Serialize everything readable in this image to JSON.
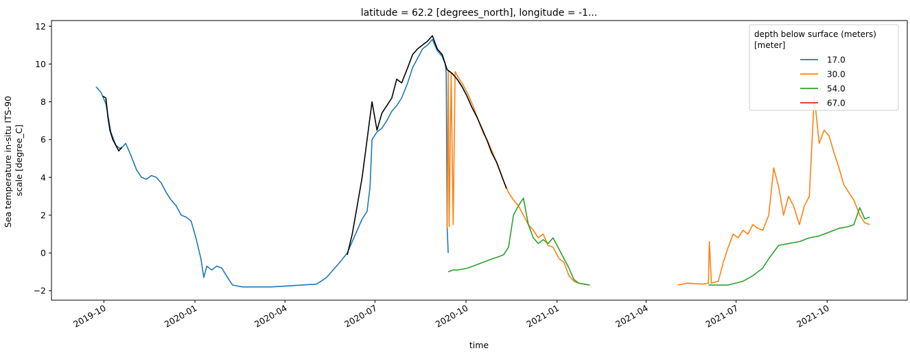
{
  "chart_data": {
    "type": "line",
    "title": "latitude = 62.2 [degrees_north], longitude = -1...",
    "xlabel": "time",
    "ylabel_line1": "Sea temperature in-situ ITS-90",
    "ylabel_line2": "scale [degree_C]",
    "xlim": [
      "2019-08-09",
      "2021-12-21"
    ],
    "ylim": [
      -2.5,
      12.3
    ],
    "x_ticks": [
      "2019-10",
      "2020-01",
      "2020-04",
      "2020-07",
      "2020-10",
      "2021-01",
      "2021-04",
      "2021-07",
      "2021-10"
    ],
    "x_tick_dates": [
      "2019-10-01",
      "2020-01-01",
      "2020-04-01",
      "2020-07-01",
      "2020-10-01",
      "2021-01-01",
      "2021-04-01",
      "2021-07-01",
      "2021-10-01"
    ],
    "y_ticks": [
      -2,
      0,
      2,
      4,
      6,
      8,
      10,
      12
    ],
    "y_tick_labels": [
      "−2",
      "0",
      "2",
      "4",
      "6",
      "8",
      "10",
      "12"
    ],
    "grid": false,
    "legend": {
      "title_line1": "depth below surface (meters)",
      "title_line2": "[meter]",
      "placement": "top-right"
    },
    "series": [
      {
        "name": "17.0",
        "color": "#1f77b4",
        "points": [
          [
            "2019-09-23",
            8.8
          ],
          [
            "2019-09-28",
            8.5
          ],
          [
            "2019-10-03",
            7.9
          ],
          [
            "2019-10-08",
            6.4
          ],
          [
            "2019-10-13",
            5.7
          ],
          [
            "2019-10-18",
            5.5
          ],
          [
            "2019-10-23",
            5.8
          ],
          [
            "2019-10-28",
            5.2
          ],
          [
            "2019-11-03",
            4.4
          ],
          [
            "2019-11-08",
            4.0
          ],
          [
            "2019-11-13",
            3.9
          ],
          [
            "2019-11-18",
            4.1
          ],
          [
            "2019-11-23",
            4.0
          ],
          [
            "2019-11-28",
            3.7
          ],
          [
            "2019-12-03",
            3.2
          ],
          [
            "2019-12-08",
            2.8
          ],
          [
            "2019-12-13",
            2.5
          ],
          [
            "2019-12-18",
            2.0
          ],
          [
            "2019-12-23",
            1.9
          ],
          [
            "2019-12-28",
            1.7
          ],
          [
            "2020-01-02",
            0.8
          ],
          [
            "2020-01-07",
            -0.3
          ],
          [
            "2020-01-10",
            -1.3
          ],
          [
            "2020-01-13",
            -0.7
          ],
          [
            "2020-01-18",
            -0.9
          ],
          [
            "2020-01-23",
            -0.7
          ],
          [
            "2020-01-28",
            -0.8
          ],
          [
            "2020-02-03",
            -1.3
          ],
          [
            "2020-02-08",
            -1.7
          ],
          [
            "2020-02-18",
            -1.8
          ],
          [
            "2020-03-03",
            -1.8
          ],
          [
            "2020-03-18",
            -1.8
          ],
          [
            "2020-04-03",
            -1.75
          ],
          [
            "2020-04-18",
            -1.7
          ],
          [
            "2020-05-03",
            -1.65
          ],
          [
            "2020-05-13",
            -1.3
          ],
          [
            "2020-05-18",
            -1.0
          ],
          [
            "2020-05-23",
            -0.7
          ],
          [
            "2020-05-28",
            -0.4
          ],
          [
            "2020-06-03",
            0.0
          ],
          [
            "2020-06-08",
            0.6
          ],
          [
            "2020-06-13",
            1.2
          ],
          [
            "2020-06-18",
            1.8
          ],
          [
            "2020-06-23",
            2.2
          ],
          [
            "2020-06-26",
            3.5
          ],
          [
            "2020-06-28",
            6.0
          ],
          [
            "2020-07-03",
            6.4
          ],
          [
            "2020-07-08",
            6.6
          ],
          [
            "2020-07-13",
            7.0
          ],
          [
            "2020-07-18",
            7.5
          ],
          [
            "2020-07-23",
            7.8
          ],
          [
            "2020-07-28",
            8.2
          ],
          [
            "2020-08-03",
            9.0
          ],
          [
            "2020-08-08",
            9.8
          ],
          [
            "2020-08-13",
            10.3
          ],
          [
            "2020-08-18",
            10.8
          ],
          [
            "2020-08-23",
            11.0
          ],
          [
            "2020-08-28",
            11.3
          ],
          [
            "2020-09-02",
            10.7
          ],
          [
            "2020-09-07",
            10.4
          ],
          [
            "2020-09-10",
            10.0
          ],
          [
            "2020-09-11",
            9.5
          ],
          [
            "2020-09-12",
            1.3
          ],
          [
            "2020-09-13",
            0.0
          ]
        ]
      },
      {
        "name": "30.0",
        "color": "#ff7f0e",
        "points": [
          [
            "2020-09-12",
            1.3
          ],
          [
            "2020-09-13",
            9.6
          ],
          [
            "2020-09-14",
            1.4
          ],
          [
            "2020-09-16",
            9.5
          ],
          [
            "2020-09-18",
            1.5
          ],
          [
            "2020-09-20",
            9.6
          ],
          [
            "2020-09-23",
            9.3
          ],
          [
            "2020-09-28",
            8.9
          ],
          [
            "2020-10-03",
            8.4
          ],
          [
            "2020-10-08",
            7.8
          ],
          [
            "2020-10-13",
            7.1
          ],
          [
            "2020-10-18",
            6.4
          ],
          [
            "2020-10-23",
            5.9
          ],
          [
            "2020-10-28",
            5.3
          ],
          [
            "2020-11-03",
            4.5
          ],
          [
            "2020-11-08",
            3.8
          ],
          [
            "2020-11-13",
            3.2
          ],
          [
            "2020-11-18",
            2.8
          ],
          [
            "2020-11-23",
            2.5
          ],
          [
            "2020-11-28",
            2.0
          ],
          [
            "2020-12-03",
            1.5
          ],
          [
            "2020-12-08",
            1.2
          ],
          [
            "2020-12-13",
            0.8
          ],
          [
            "2020-12-18",
            1.0
          ],
          [
            "2020-12-23",
            0.4
          ],
          [
            "2020-12-28",
            0.3
          ],
          [
            "2021-01-03",
            -0.3
          ],
          [
            "2021-01-08",
            -0.5
          ],
          [
            "2021-01-13",
            -1.2
          ],
          [
            "2021-01-18",
            -1.5
          ],
          [
            "2021-01-23",
            -1.6
          ],
          [
            "2021-02-03",
            -1.7
          ],
          [
            "2021-03-03",
            -1.75
          ],
          [
            "2021-04-03",
            -1.75
          ],
          [
            "2021-05-03",
            -1.7
          ],
          [
            "2021-05-13",
            -1.6
          ],
          [
            "2021-05-28",
            -1.65
          ],
          [
            "2021-06-03",
            -1.6
          ],
          [
            "2021-06-04",
            0.6
          ],
          [
            "2021-06-06",
            -1.6
          ],
          [
            "2021-06-13",
            -1.5
          ],
          [
            "2021-06-18",
            -0.5
          ],
          [
            "2021-06-23",
            0.3
          ],
          [
            "2021-06-28",
            1.0
          ],
          [
            "2021-07-03",
            0.8
          ],
          [
            "2021-07-08",
            1.2
          ],
          [
            "2021-07-13",
            1.0
          ],
          [
            "2021-07-18",
            1.5
          ],
          [
            "2021-07-23",
            1.3
          ],
          [
            "2021-07-28",
            1.2
          ],
          [
            "2021-08-03",
            2.0
          ],
          [
            "2021-08-08",
            4.5
          ],
          [
            "2021-08-13",
            3.5
          ],
          [
            "2021-08-18",
            2.0
          ],
          [
            "2021-08-23",
            3.0
          ],
          [
            "2021-08-28",
            2.5
          ],
          [
            "2021-09-03",
            1.5
          ],
          [
            "2021-09-08",
            2.5
          ],
          [
            "2021-09-13",
            3.0
          ],
          [
            "2021-09-18",
            8.3
          ],
          [
            "2021-09-23",
            5.8
          ],
          [
            "2021-09-28",
            6.5
          ],
          [
            "2021-10-03",
            6.2
          ],
          [
            "2021-10-08",
            5.3
          ],
          [
            "2021-10-13",
            4.5
          ],
          [
            "2021-10-18",
            3.6
          ],
          [
            "2021-10-23",
            3.2
          ],
          [
            "2021-10-28",
            2.8
          ],
          [
            "2021-11-03",
            2.0
          ],
          [
            "2021-11-08",
            1.6
          ],
          [
            "2021-11-13",
            1.5
          ]
        ]
      },
      {
        "name": "54.0",
        "color": "#2ca02c",
        "points": [
          [
            "2020-09-13",
            -1.0
          ],
          [
            "2020-09-18",
            -0.9
          ],
          [
            "2020-09-23",
            -0.9
          ],
          [
            "2020-10-03",
            -0.8
          ],
          [
            "2020-10-13",
            -0.6
          ],
          [
            "2020-10-23",
            -0.4
          ],
          [
            "2020-10-28",
            -0.3
          ],
          [
            "2020-11-03",
            -0.2
          ],
          [
            "2020-11-08",
            -0.1
          ],
          [
            "2020-11-13",
            0.3
          ],
          [
            "2020-11-18",
            2.0
          ],
          [
            "2020-11-23",
            2.5
          ],
          [
            "2020-11-28",
            2.9
          ],
          [
            "2020-12-03",
            1.5
          ],
          [
            "2020-12-08",
            0.8
          ],
          [
            "2020-12-13",
            0.5
          ],
          [
            "2020-12-18",
            0.7
          ],
          [
            "2020-12-23",
            0.5
          ],
          [
            "2020-12-28",
            0.8
          ],
          [
            "2021-01-03",
            0.2
          ],
          [
            "2021-01-08",
            -0.3
          ],
          [
            "2021-01-13",
            -0.8
          ],
          [
            "2021-01-18",
            -1.4
          ],
          [
            "2021-01-23",
            -1.6
          ],
          [
            "2021-02-03",
            -1.7
          ],
          [
            "2021-03-03",
            -1.75
          ],
          [
            "2021-04-03",
            -1.75
          ],
          [
            "2021-05-03",
            -1.7
          ],
          [
            "2021-06-03",
            -1.7
          ],
          [
            "2021-06-23",
            -1.7
          ],
          [
            "2021-07-08",
            -1.5
          ],
          [
            "2021-07-18",
            -1.2
          ],
          [
            "2021-07-28",
            -0.8
          ],
          [
            "2021-08-03",
            -0.3
          ],
          [
            "2021-08-13",
            0.4
          ],
          [
            "2021-08-23",
            0.5
          ],
          [
            "2021-09-03",
            0.6
          ],
          [
            "2021-09-13",
            0.8
          ],
          [
            "2021-09-23",
            0.9
          ],
          [
            "2021-10-03",
            1.1
          ],
          [
            "2021-10-13",
            1.3
          ],
          [
            "2021-10-23",
            1.4
          ],
          [
            "2021-10-28",
            1.5
          ],
          [
            "2021-11-03",
            2.4
          ],
          [
            "2021-11-08",
            1.8
          ],
          [
            "2021-11-13",
            1.9
          ]
        ]
      },
      {
        "name": "67.0",
        "color": "#d62728",
        "points": []
      },
      {
        "name": "",
        "color": "#000000",
        "points": [
          [
            "2019-09-30",
            8.3
          ],
          [
            "2019-10-03",
            8.2
          ],
          [
            "2019-10-05",
            7.2
          ],
          [
            "2019-10-07",
            6.5
          ],
          [
            "2019-10-10",
            6.0
          ],
          [
            "2019-10-13",
            5.7
          ],
          [
            "2019-10-16",
            5.4
          ],
          [
            "2019-10-19",
            5.6
          ],
          [
            "2020-06-03",
            -0.1
          ],
          [
            "2020-06-08",
            1.0
          ],
          [
            "2020-06-13",
            2.5
          ],
          [
            "2020-06-18",
            4.0
          ],
          [
            "2020-06-23",
            6.0
          ],
          [
            "2020-06-28",
            8.0
          ],
          [
            "2020-07-03",
            6.5
          ],
          [
            "2020-07-08",
            7.4
          ],
          [
            "2020-07-13",
            7.8
          ],
          [
            "2020-07-18",
            8.2
          ],
          [
            "2020-07-23",
            9.2
          ],
          [
            "2020-07-28",
            9.0
          ],
          [
            "2020-08-03",
            9.8
          ],
          [
            "2020-08-08",
            10.5
          ],
          [
            "2020-08-13",
            10.8
          ],
          [
            "2020-08-18",
            11.0
          ],
          [
            "2020-08-23",
            11.2
          ],
          [
            "2020-08-28",
            11.5
          ],
          [
            "2020-09-02",
            10.8
          ],
          [
            "2020-09-07",
            10.5
          ],
          [
            "2020-09-12",
            9.7
          ],
          [
            "2020-09-17",
            9.5
          ],
          [
            "2020-09-22",
            9.2
          ],
          [
            "2020-09-27",
            8.8
          ],
          [
            "2020-10-02",
            8.3
          ],
          [
            "2020-10-07",
            7.7
          ],
          [
            "2020-10-12",
            7.2
          ],
          [
            "2020-10-17",
            6.6
          ],
          [
            "2020-10-22",
            6.0
          ],
          [
            "2020-10-27",
            5.3
          ],
          [
            "2020-11-01",
            4.8
          ],
          [
            "2020-11-06",
            4.1
          ],
          [
            "2020-11-11",
            3.4
          ]
        ]
      }
    ]
  }
}
